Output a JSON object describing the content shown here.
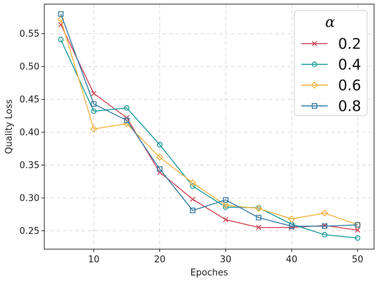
{
  "chart_data": {
    "type": "line",
    "title": "",
    "xlabel": "Epoches",
    "ylabel": "Quality Loss",
    "xlim": [
      2.5,
      52.5
    ],
    "ylim": [
      0.222,
      0.595
    ],
    "x_ticks": [
      10,
      20,
      30,
      40,
      50
    ],
    "y_ticks": [
      0.25,
      0.3,
      0.35,
      0.4,
      0.45,
      0.5,
      0.55
    ],
    "grid": true,
    "legend_placement": "top-right",
    "legend_title": "α",
    "x": [
      5,
      10,
      15,
      20,
      25,
      30,
      35,
      40,
      45,
      50
    ],
    "series": [
      {
        "name": "0.2",
        "color": "#d1495b",
        "marker": "x",
        "values": [
          0.564,
          0.459,
          0.422,
          0.339,
          0.298,
          0.267,
          0.255,
          0.255,
          0.258,
          0.251
        ]
      },
      {
        "name": "0.4",
        "color": "#1f9e9e",
        "marker": "circle",
        "values": [
          0.541,
          0.432,
          0.437,
          0.381,
          0.318,
          0.286,
          0.285,
          0.26,
          0.244,
          0.239
        ]
      },
      {
        "name": "0.6",
        "color": "#f2b447",
        "marker": "diamond",
        "values": [
          0.572,
          0.405,
          0.413,
          0.362,
          0.323,
          0.289,
          0.284,
          0.268,
          0.277,
          0.259
        ]
      },
      {
        "name": "0.8",
        "color": "#3a7ca5",
        "marker": "square",
        "values": [
          0.58,
          0.443,
          0.418,
          0.344,
          0.281,
          0.297,
          0.27,
          0.257,
          0.257,
          0.259
        ]
      }
    ]
  }
}
